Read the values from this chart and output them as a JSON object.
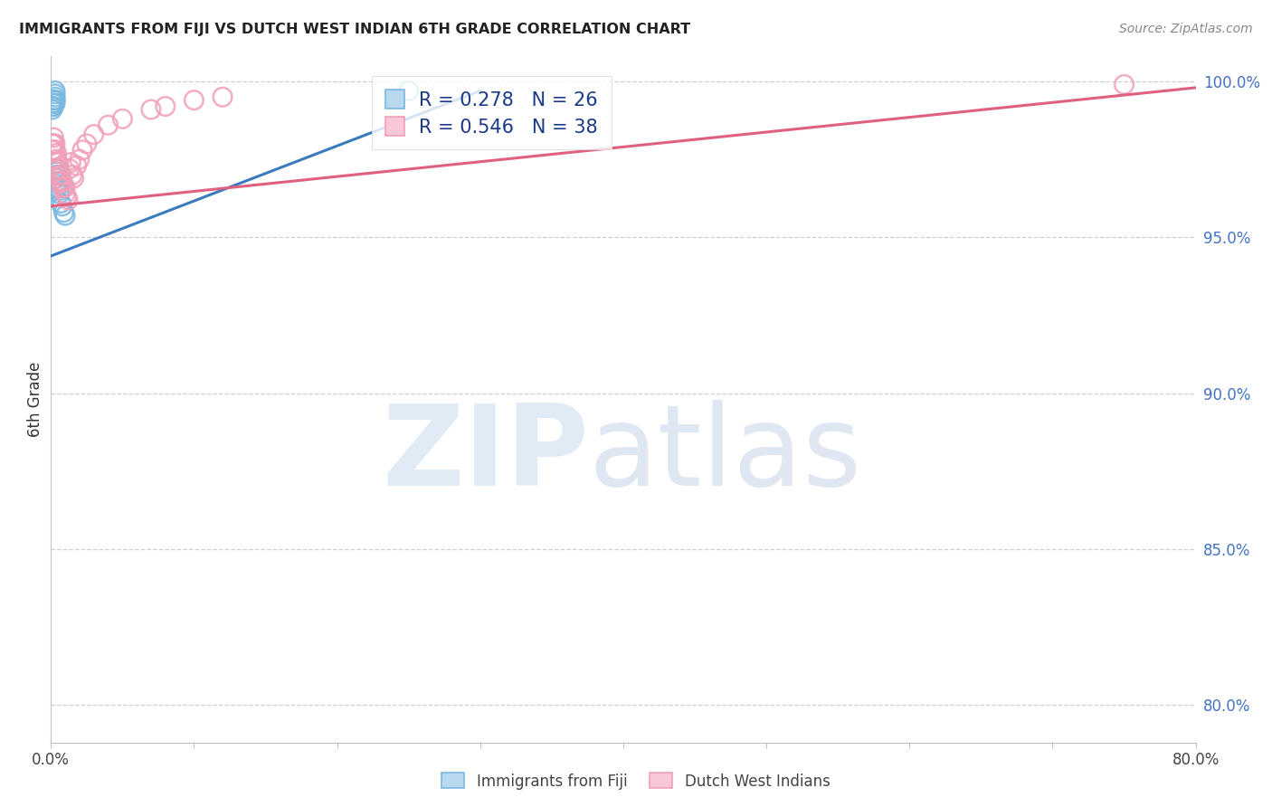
{
  "title": "IMMIGRANTS FROM FIJI VS DUTCH WEST INDIAN 6TH GRADE CORRELATION CHART",
  "source": "Source: ZipAtlas.com",
  "ylabel": "6th Grade",
  "fiji_color": "#7ab8e0",
  "dutch_color": "#f0a0b8",
  "fiji_line_color": "#3a7abf",
  "dutch_line_color": "#e06080",
  "xlim": [
    0.0,
    0.8
  ],
  "ylim": [
    0.788,
    1.008
  ],
  "grid_lines": [
    1.0,
    0.95,
    0.9,
    0.85,
    0.8
  ],
  "right_tick_labels": [
    "100.0%",
    "95.0%",
    "90.0%",
    "85.0%",
    "80.0%"
  ],
  "fiji_x": [
    0.001,
    0.001,
    0.002,
    0.002,
    0.002,
    0.002,
    0.003,
    0.003,
    0.003,
    0.003,
    0.003,
    0.003,
    0.004,
    0.004,
    0.004,
    0.004,
    0.005,
    0.005,
    0.005,
    0.006,
    0.006,
    0.007,
    0.008,
    0.009,
    0.01,
    0.25
  ],
  "fiji_y": [
    0.991,
    0.992,
    0.992,
    0.993,
    0.993,
    0.994,
    0.993,
    0.994,
    0.994,
    0.995,
    0.996,
    0.997,
    0.969,
    0.97,
    0.971,
    0.972,
    0.966,
    0.967,
    0.968,
    0.964,
    0.965,
    0.961,
    0.96,
    0.958,
    0.957,
    0.997
  ],
  "dutch_x": [
    0.001,
    0.001,
    0.002,
    0.002,
    0.002,
    0.003,
    0.003,
    0.004,
    0.004,
    0.005,
    0.005,
    0.006,
    0.006,
    0.007,
    0.007,
    0.008,
    0.008,
    0.009,
    0.01,
    0.01,
    0.011,
    0.012,
    0.013,
    0.014,
    0.015,
    0.016,
    0.018,
    0.02,
    0.022,
    0.025,
    0.03,
    0.04,
    0.05,
    0.07,
    0.08,
    0.1,
    0.12,
    0.75
  ],
  "dutch_y": [
    0.978,
    0.98,
    0.978,
    0.98,
    0.982,
    0.978,
    0.98,
    0.975,
    0.977,
    0.972,
    0.974,
    0.97,
    0.972,
    0.968,
    0.97,
    0.966,
    0.968,
    0.966,
    0.964,
    0.966,
    0.963,
    0.962,
    0.972,
    0.974,
    0.97,
    0.969,
    0.973,
    0.975,
    0.978,
    0.98,
    0.983,
    0.986,
    0.988,
    0.991,
    0.992,
    0.994,
    0.995,
    0.999
  ],
  "fiji_trend_x": [
    0.0,
    0.3
  ],
  "fiji_trend_y": [
    0.944,
    0.997
  ],
  "dutch_trend_x": [
    0.0,
    0.8
  ],
  "dutch_trend_y": [
    0.96,
    0.998
  ],
  "legend_r1": "R = 0.278",
  "legend_n1": "N = 26",
  "legend_r2": "R = 0.546",
  "legend_n2": "N = 38",
  "watermark_zip": "ZIP",
  "watermark_atlas": "atlas",
  "bottom_legend1": "Immigrants from Fiji",
  "bottom_legend2": "Dutch West Indians"
}
